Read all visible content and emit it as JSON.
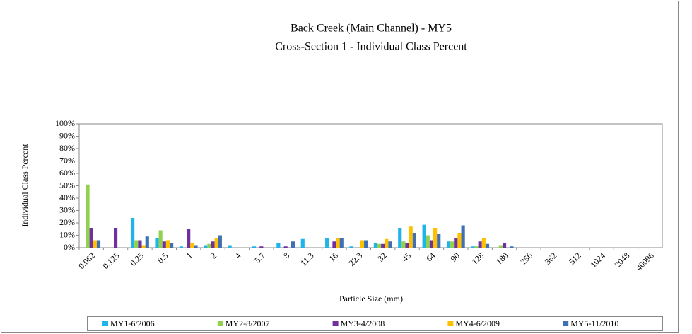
{
  "chart_data": {
    "type": "bar",
    "title": "Back Creek (Main Channel) - MY5",
    "subtitle": "Cross-Section 1 - Individual Class Percent",
    "x_label": "Particle Size (mm)",
    "y_label": "Individual Class Percent",
    "categories": [
      "0.062",
      "0.125",
      "0.25",
      "0.5",
      "1",
      "2",
      "4",
      "5.7",
      "8",
      "11.3",
      "16",
      "22.3",
      "32",
      "45",
      "64",
      "90",
      "128",
      "180",
      "256",
      "362",
      "512",
      "1024",
      "2048",
      "40096"
    ],
    "series": [
      {
        "name": "MY1-6/2006",
        "color": "#1fb4ea",
        "values": [
          0,
          0,
          24,
          8,
          1,
          2,
          2,
          1,
          4,
          7,
          8,
          1,
          4,
          16,
          18.5,
          5,
          1,
          0,
          0,
          0,
          0,
          0,
          0,
          0
        ]
      },
      {
        "name": "MY2-8/2007",
        "color": "#92d050",
        "values": [
          51,
          0,
          6,
          14,
          0,
          3,
          0,
          0,
          0,
          0,
          0,
          0,
          3,
          5,
          10,
          5,
          1,
          2,
          0,
          0,
          0,
          0,
          0,
          0
        ]
      },
      {
        "name": "MY3-4/2008",
        "color": "#7030a0",
        "values": [
          16,
          16,
          6,
          5,
          15,
          5,
          0,
          1,
          1,
          0,
          5,
          0,
          3,
          4,
          6,
          8,
          5,
          4,
          0,
          0,
          0,
          0,
          0,
          0
        ]
      },
      {
        "name": "MY4-6/2009",
        "color": "#ffc000",
        "values": [
          6,
          0,
          2,
          6,
          4,
          8,
          0,
          0,
          0,
          0,
          8,
          6,
          7,
          17,
          16,
          12,
          8,
          0,
          0,
          0,
          0,
          0,
          0,
          0
        ]
      },
      {
        "name": "MY5-11/2010",
        "color": "#3f6fb4",
        "values": [
          6,
          0,
          9,
          4,
          2,
          10,
          0,
          0,
          5,
          0,
          8,
          6,
          5,
          12,
          11,
          18,
          3,
          1,
          0,
          0,
          0,
          0,
          0,
          0
        ]
      }
    ],
    "ylim": [
      0,
      100
    ],
    "yticks": [
      {
        "value": 0,
        "label": "0%"
      },
      {
        "value": 10,
        "label": "10%"
      },
      {
        "value": 20,
        "label": "20%"
      },
      {
        "value": 30,
        "label": "30%"
      },
      {
        "value": 40,
        "label": "40%"
      },
      {
        "value": 50,
        "label": "50%"
      },
      {
        "value": 60,
        "label": "60%"
      },
      {
        "value": 70,
        "label": "70%"
      },
      {
        "value": 80,
        "label": "80%"
      },
      {
        "value": 90,
        "label": "90%"
      },
      {
        "value": 100,
        "label": "100%"
      }
    ],
    "grid": false,
    "legend": "bottom"
  }
}
